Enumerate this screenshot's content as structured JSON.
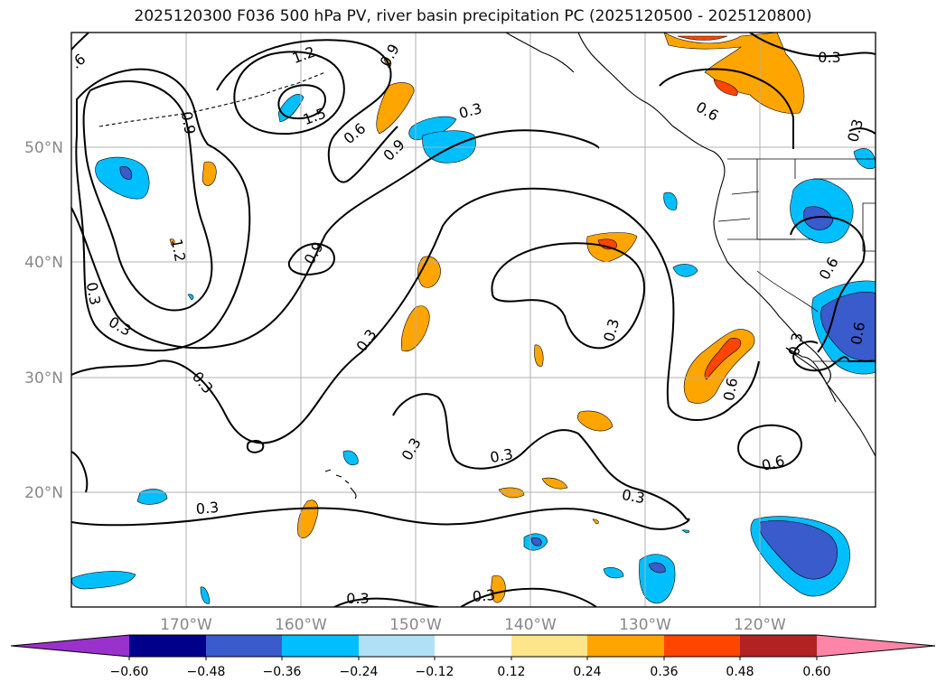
{
  "title": "2025120300 F036 500 hPa PV, river basin precipitation PC (2025120500 - 2025120800)",
  "axes": {
    "lon_ticks": [
      "170°W",
      "160°W",
      "150°W",
      "140°W",
      "130°W",
      "120°W"
    ],
    "lat_ticks": [
      "50°N",
      "40°N",
      "30°N",
      "20°N"
    ]
  },
  "colorbar": {
    "labels": [
      "−0.60",
      "−0.48",
      "−0.36",
      "−0.24",
      "−0.12",
      "0.12",
      "0.24",
      "0.36",
      "0.48",
      "0.60"
    ],
    "colors": [
      "#9932cc",
      "#00008b",
      "#3a5bcb",
      "#00bfff",
      "#b0e0f6",
      "#ffffff",
      "#fde68a",
      "#ffa500",
      "#ff4500",
      "#b22222",
      "#ff85a8"
    ]
  },
  "contour_labels": [
    ".6",
    "1.2",
    "1.5",
    "0.9",
    "0.3",
    "0.6",
    "0.9",
    "1.2",
    "0.3",
    "0.9",
    "0.3",
    "0.3",
    "0.3",
    "0.3",
    "0.6",
    "0.3",
    "0.6",
    "0.3",
    "0.3",
    "0.6",
    "0.3",
    "0.6",
    "0.3",
    "0.3",
    "0.9",
    "0.3",
    "0.6",
    "0.3",
    "0.3"
  ],
  "chart_data": {
    "type": "contour-map",
    "title": "2025120300 F036 500 hPa PV, river basin precipitation PC (2025120500 - 2025120800)",
    "lon_range": [
      -180,
      -110
    ],
    "lat_range": [
      10,
      60
    ],
    "contour_levels": [
      0.3,
      0.6,
      0.9,
      1.2,
      1.5
    ],
    "fill_levels": [
      -0.6,
      -0.48,
      -0.36,
      -0.24,
      -0.12,
      0.12,
      0.24,
      0.36,
      0.48,
      0.6
    ]
  }
}
